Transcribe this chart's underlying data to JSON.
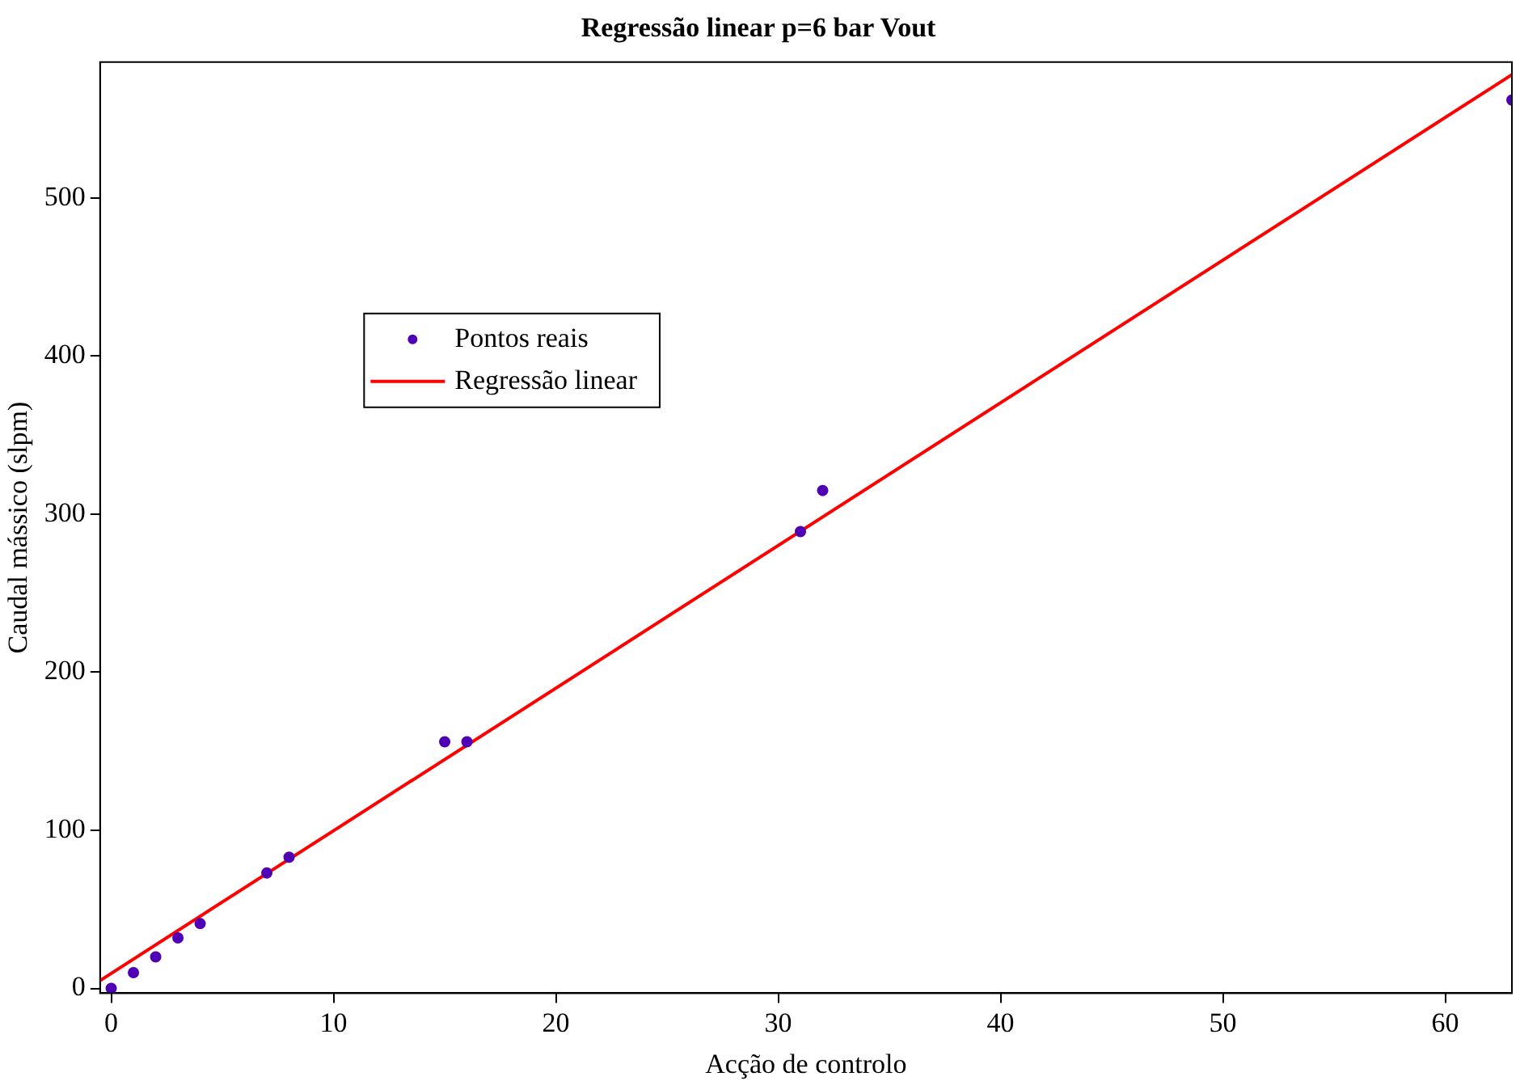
{
  "chart_data": {
    "type": "scatter",
    "title": "Regressão linear p=6 bar Vout",
    "xlabel": "Acção de controlo",
    "ylabel": "Caudal mássico (slpm)",
    "xlim": [
      -0.5,
      63
    ],
    "xticks": [
      0,
      10,
      20,
      30,
      40,
      50,
      60
    ],
    "ylim": [
      -3,
      586
    ],
    "yticks": [
      0,
      100,
      200,
      300,
      400,
      500
    ],
    "grid": false,
    "legend": "top left",
    "series": [
      {
        "name": "Pontos reais",
        "type": "scatter",
        "marker": "circle",
        "color": "#5000b4",
        "x": [
          0,
          1,
          2,
          3,
          4,
          7,
          8,
          15,
          16,
          31,
          32,
          63
        ],
        "values": [
          0,
          10,
          20,
          32,
          41,
          73,
          83,
          156,
          156,
          289,
          315,
          562
        ]
      },
      {
        "name": "Regressão linear",
        "type": "line",
        "marker": "none",
        "line_style": "solid",
        "color": "#ff0000",
        "x": [
          -0.5,
          63
        ],
        "values": [
          5,
          578
        ]
      }
    ]
  }
}
